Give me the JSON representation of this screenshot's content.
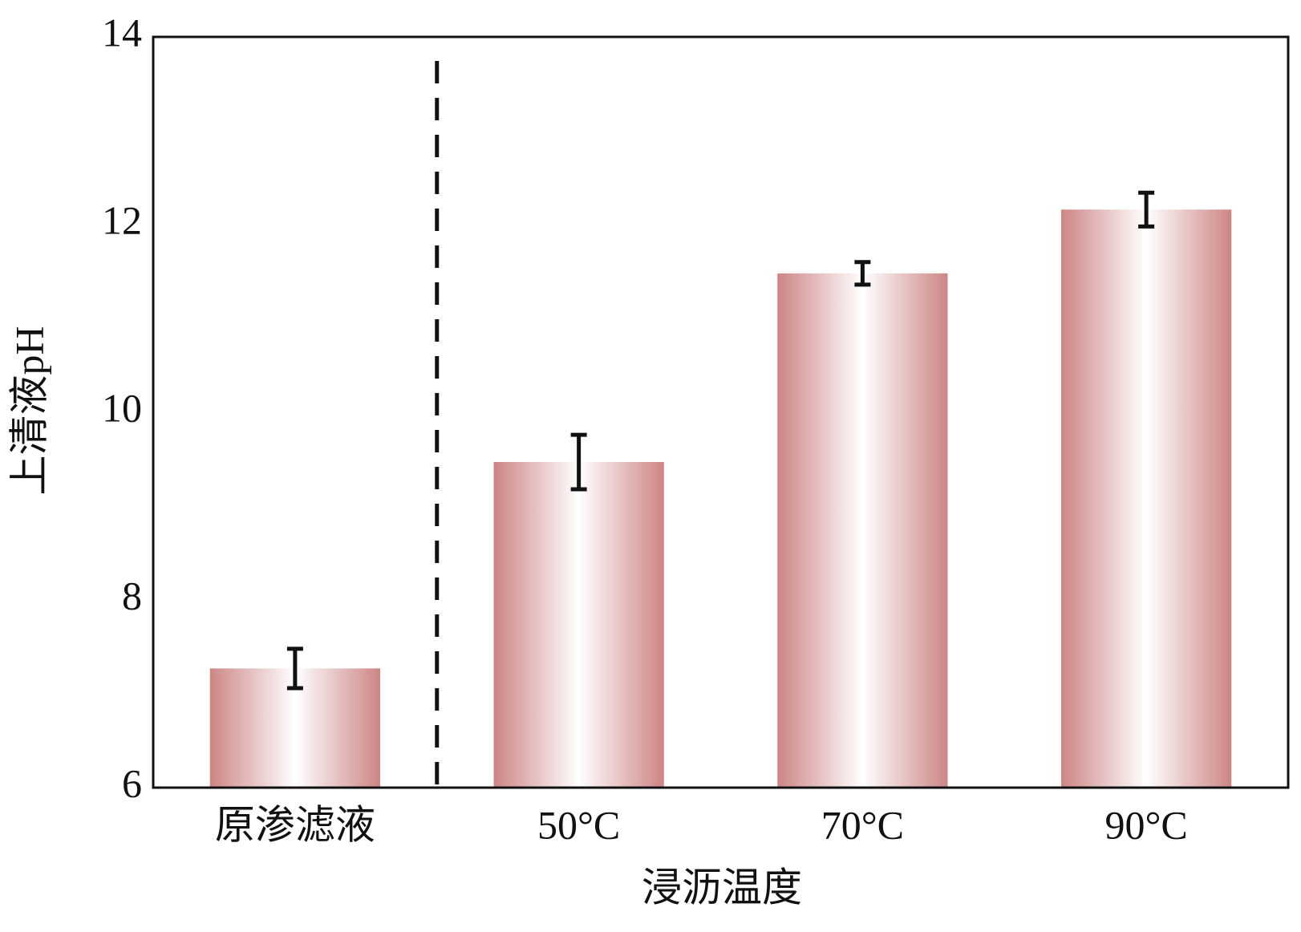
{
  "chart_data": {
    "type": "bar",
    "x_label": "浸沥温度",
    "y_label": "上清液pH",
    "categories": [
      "原渗滤液",
      "50°C",
      "70°C",
      "90°C"
    ],
    "values": [
      7.27,
      9.47,
      11.48,
      12.16
    ],
    "errors": [
      0.21,
      0.29,
      0.12,
      0.18
    ],
    "color": "#cd8585",
    "ylim": [
      6,
      14
    ],
    "yticks": [
      6,
      8,
      10,
      12,
      14
    ],
    "grid": false
  }
}
